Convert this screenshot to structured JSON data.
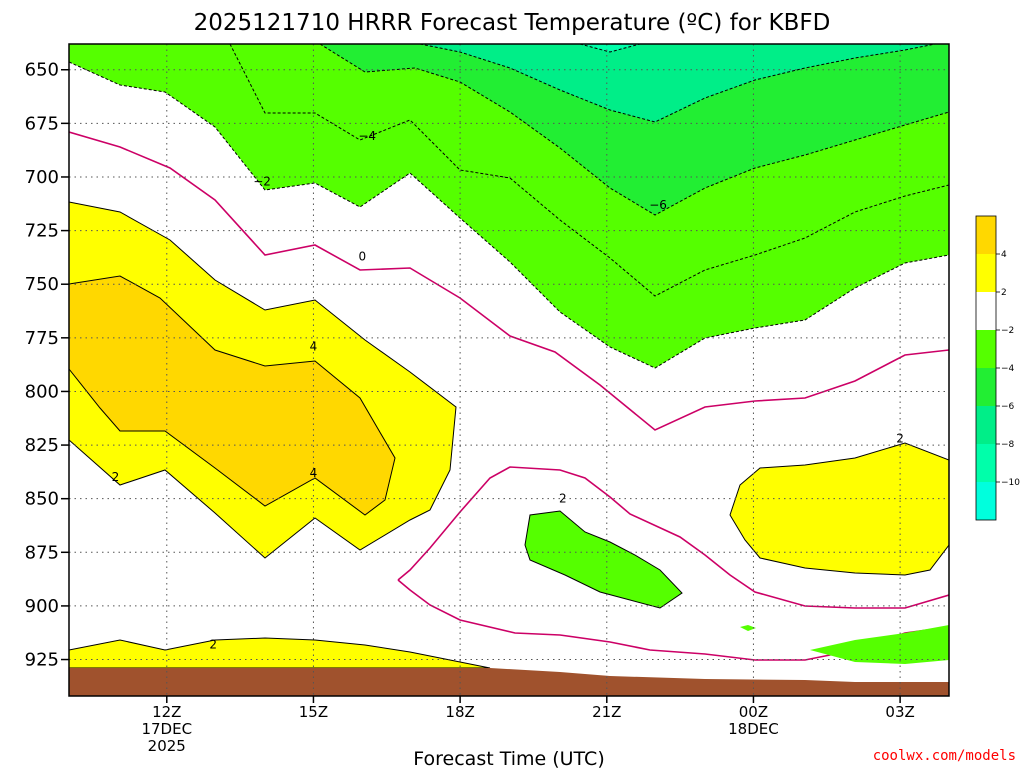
{
  "chart_data": {
    "type": "contour",
    "title": "2025121710 HRRR Forecast Temperature (ºC) for KBFD",
    "xlabel": "Forecast Time (UTC)",
    "ylabel": "",
    "x_ticks": [
      {
        "value": 12,
        "lines": [
          "12Z",
          "17DEC",
          "2025"
        ]
      },
      {
        "value": 15,
        "lines": [
          "15Z"
        ]
      },
      {
        "value": 18,
        "lines": [
          "18Z"
        ]
      },
      {
        "value": 21,
        "lines": [
          "21Z"
        ]
      },
      {
        "value": 24,
        "lines": [
          "00Z",
          "18DEC"
        ]
      },
      {
        "value": 27,
        "lines": [
          "03Z"
        ]
      }
    ],
    "xlim": [
      10,
      28
    ],
    "y_ticks": [
      650,
      675,
      700,
      725,
      750,
      775,
      800,
      825,
      850,
      875,
      900,
      925
    ],
    "ylim": [
      638,
      942
    ],
    "grid": true,
    "colorbar": {
      "ticks": [
        "4",
        "2",
        "−2",
        "−4",
        "−6",
        "−8",
        "−10"
      ],
      "colors": [
        "#ffd800",
        "#ffff00",
        "#ffffff",
        "#55ff00",
        "#22ee33",
        "#00ee88",
        "#00ffaa",
        "#00ffdd"
      ]
    },
    "fill_colors": {
      "t_gt_4": "#ffd800",
      "t_2_to_4": "#ffff00",
      "t_0_to_minus2": "#ffffff",
      "t_minus2_to_minus4": "#55ff00",
      "t_minus4_to_minus6": "#22ee33",
      "t_minus6_to_minus8": "#00ee88",
      "t_minus8_to_minus10": "#00ffaa",
      "t_lt_minus10": "#00ffdd",
      "ground": "#a0522d",
      "zero_line": "#cc0066"
    },
    "contour_labels": [
      {
        "text": "−2",
        "x": 13.95,
        "y": 702
      },
      {
        "text": "−4",
        "x": 16.1,
        "y": 681
      },
      {
        "text": "−6",
        "x": 22.05,
        "y": 713
      },
      {
        "text": "0",
        "x": 16.0,
        "y": 737
      },
      {
        "text": "4",
        "x": 15.0,
        "y": 779
      },
      {
        "text": "4",
        "x": 15.0,
        "y": 838
      },
      {
        "text": "2",
        "x": 10.95,
        "y": 840
      },
      {
        "text": "2",
        "x": 12.95,
        "y": 918
      },
      {
        "text": "2",
        "x": 20.1,
        "y": 850
      },
      {
        "text": "2",
        "x": 27.0,
        "y": 822
      }
    ]
  },
  "credit": "coolwx.com/models",
  "colors": {
    "credit": "#ff0000"
  }
}
